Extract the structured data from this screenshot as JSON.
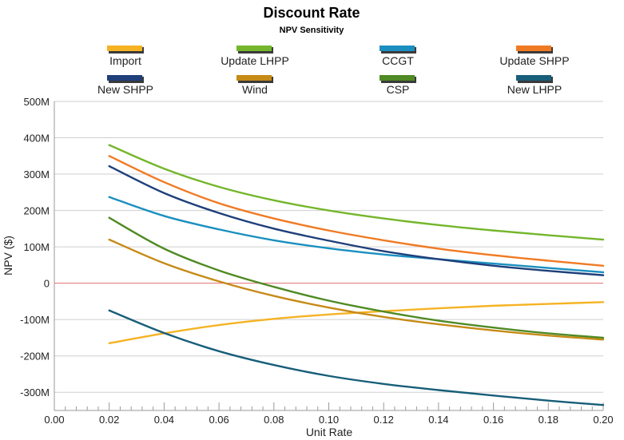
{
  "chart_data": {
    "type": "line",
    "title": "Discount Rate",
    "subtitle": "NPV Sensitivity",
    "xlabel": "Unit Rate",
    "ylabel": "NPV ($)",
    "xlim": [
      0,
      0.2
    ],
    "ylim": [
      -350000000,
      500000000
    ],
    "x_ticks": [
      "0.00",
      "0.02",
      "0.04",
      "0.06",
      "0.08",
      "0.10",
      "0.12",
      "0.14",
      "0.16",
      "0.18",
      "0.20"
    ],
    "y_ticks": [
      "500M",
      "400M",
      "300M",
      "200M",
      "100M",
      "0",
      "-100M",
      "-200M",
      "-300M"
    ],
    "y_tick_values": [
      500000000,
      400000000,
      300000000,
      200000000,
      100000000,
      0,
      -100000000,
      -200000000,
      -300000000
    ],
    "zero_line_color": "#e07070",
    "legend_placement": "top",
    "x": [
      0.02,
      0.04,
      0.06,
      0.08,
      0.1,
      0.12,
      0.14,
      0.16,
      0.18,
      0.2
    ],
    "series": [
      {
        "name": "Import",
        "color": "#f5b324",
        "values": [
          -165000000,
          -138000000,
          -115000000,
          -98000000,
          -86000000,
          -77000000,
          -69000000,
          -62000000,
          -57000000,
          -52000000
        ]
      },
      {
        "name": "Update LHPP",
        "color": "#74b62c",
        "values": [
          380000000,
          315000000,
          265000000,
          228000000,
          200000000,
          178000000,
          160000000,
          145000000,
          132000000,
          120000000
        ]
      },
      {
        "name": "CCGT",
        "color": "#1a8fc0",
        "values": [
          237000000,
          185000000,
          148000000,
          118000000,
          96000000,
          79000000,
          66000000,
          54000000,
          42000000,
          30000000
        ]
      },
      {
        "name": "Update SHPP",
        "color": "#f07a23",
        "values": [
          350000000,
          278000000,
          220000000,
          178000000,
          145000000,
          118000000,
          95000000,
          77000000,
          62000000,
          48000000
        ]
      },
      {
        "name": "New SHPP",
        "color": "#1f3f7a",
        "values": [
          322000000,
          248000000,
          193000000,
          150000000,
          117000000,
          88000000,
          66000000,
          48000000,
          34000000,
          22000000
        ]
      },
      {
        "name": "Wind",
        "color": "#c68a16",
        "values": [
          120000000,
          55000000,
          5000000,
          -35000000,
          -67000000,
          -93000000,
          -113000000,
          -130000000,
          -144000000,
          -155000000
        ]
      },
      {
        "name": "CSP",
        "color": "#4f8a24",
        "values": [
          180000000,
          95000000,
          35000000,
          -10000000,
          -48000000,
          -78000000,
          -103000000,
          -122000000,
          -138000000,
          -150000000
        ]
      },
      {
        "name": "New LHPP",
        "color": "#175e79",
        "values": [
          -75000000,
          -137000000,
          -187000000,
          -225000000,
          -255000000,
          -277000000,
          -294000000,
          -309000000,
          -323000000,
          -335000000
        ]
      }
    ]
  }
}
